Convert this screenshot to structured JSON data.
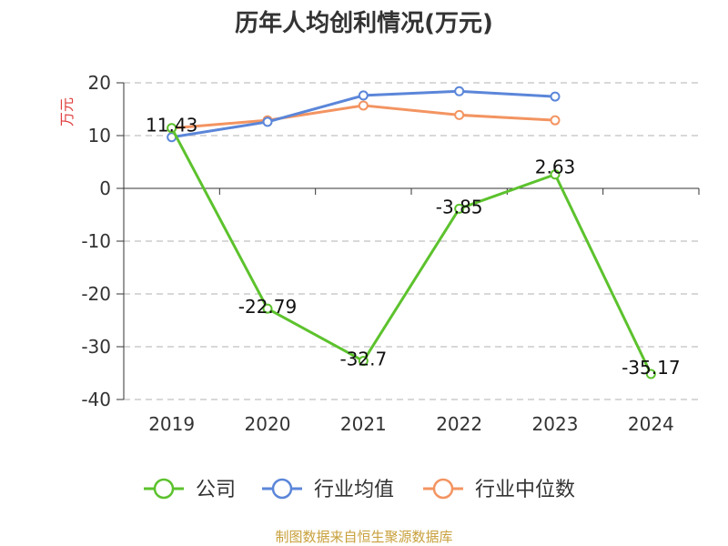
{
  "title": "历年人均创利情况(万元)",
  "source": "制图数据来自恒生聚源数据库",
  "colors": {
    "company": "#5cc22d",
    "industry_avg": "#5b86d9",
    "industry_median": "#f39461",
    "unit_text": "#e03c3c",
    "source_text": "#c8a03c",
    "axis": "#333333",
    "grid": "#cccccc"
  },
  "chart_data": {
    "type": "line",
    "title": "历年人均创利情况(万元)",
    "ylabel": "万元",
    "xlabel": "",
    "categories": [
      "2019",
      "2020",
      "2021",
      "2022",
      "2023",
      "2024"
    ],
    "ylim": [
      -40,
      20
    ],
    "yticks": [
      20,
      10,
      0,
      -10,
      -20,
      -30,
      -40
    ],
    "grid": "horizontal dashed",
    "legend_position": "bottom",
    "series": [
      {
        "name": "公司",
        "color_key": "company",
        "values": [
          11.43,
          -22.79,
          -32.7,
          -3.85,
          2.63,
          -35.17
        ],
        "labels": [
          "11.43",
          "-22.79",
          "-32.7",
          "-3.85",
          "2.63",
          "-35.17"
        ],
        "show_labels": true
      },
      {
        "name": "行业均值",
        "color_key": "industry_avg",
        "values": [
          9.7,
          12.6,
          17.6,
          18.4,
          17.4,
          null
        ],
        "show_labels": false
      },
      {
        "name": "行业中位数",
        "color_key": "industry_median",
        "values": [
          11.4,
          12.9,
          15.7,
          13.9,
          12.9,
          null
        ],
        "show_labels": false
      }
    ]
  }
}
